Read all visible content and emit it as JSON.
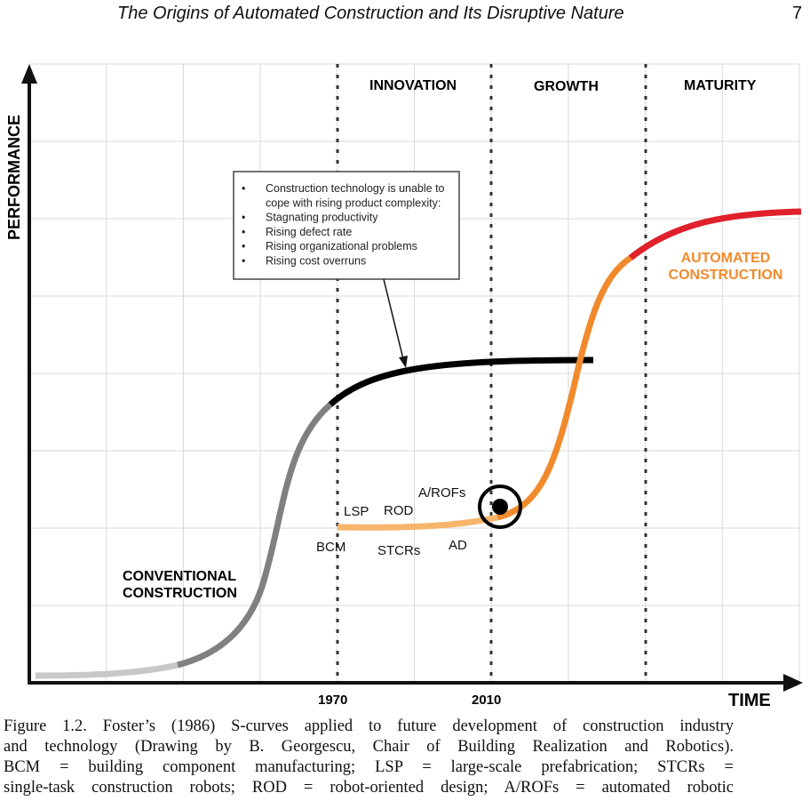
{
  "header": {
    "running_title": "The Origins of Automated Construction and Its Disruptive Nature",
    "page_number": "7"
  },
  "figure": {
    "y_axis_label": "PERFORMANCE",
    "x_axis_label": "TIME",
    "x_ticks": [
      "1970",
      "2010"
    ],
    "phases": [
      "INNOVATION",
      "GROWTH",
      "MATURITY"
    ],
    "callout": {
      "items": [
        "Construction technology is unable to cope with rising product complexity:",
        "Stagnating productivity",
        "Rising defect rate",
        "Rising organizational problems",
        "Rising cost overruns"
      ]
    },
    "curve_labels": {
      "conventional": [
        "CONVENTIONAL",
        "CONSTRUCTION"
      ],
      "automated": [
        "AUTOMATED",
        "CONSTRUCTION"
      ]
    },
    "milestones": [
      "BCM",
      "LSP",
      "ROD",
      "STCRs",
      "AD",
      "A/ROFs"
    ],
    "colors": {
      "conventional_early": "#c8c8c8",
      "conventional_growth": "#808080",
      "conventional_mature": "#000000",
      "automated_early": "#f7b56c",
      "automated_growth": "#f08a2c",
      "automated_mature": "#e0202a",
      "automated_label": "#f08a2c"
    }
  },
  "caption": {
    "lines": [
      "Figure 1.2. Foster’s (1986) S-curves applied to future development of construction industry",
      "and technology (Drawing by B. Georgescu, Chair of Building Realization and Robotics).",
      "BCM = building component manufacturing; LSP = large-scale prefabrication; STCRs =",
      "single-task construction robots; ROD = robot-oriented design; A/ROFs = automated robotic"
    ]
  }
}
